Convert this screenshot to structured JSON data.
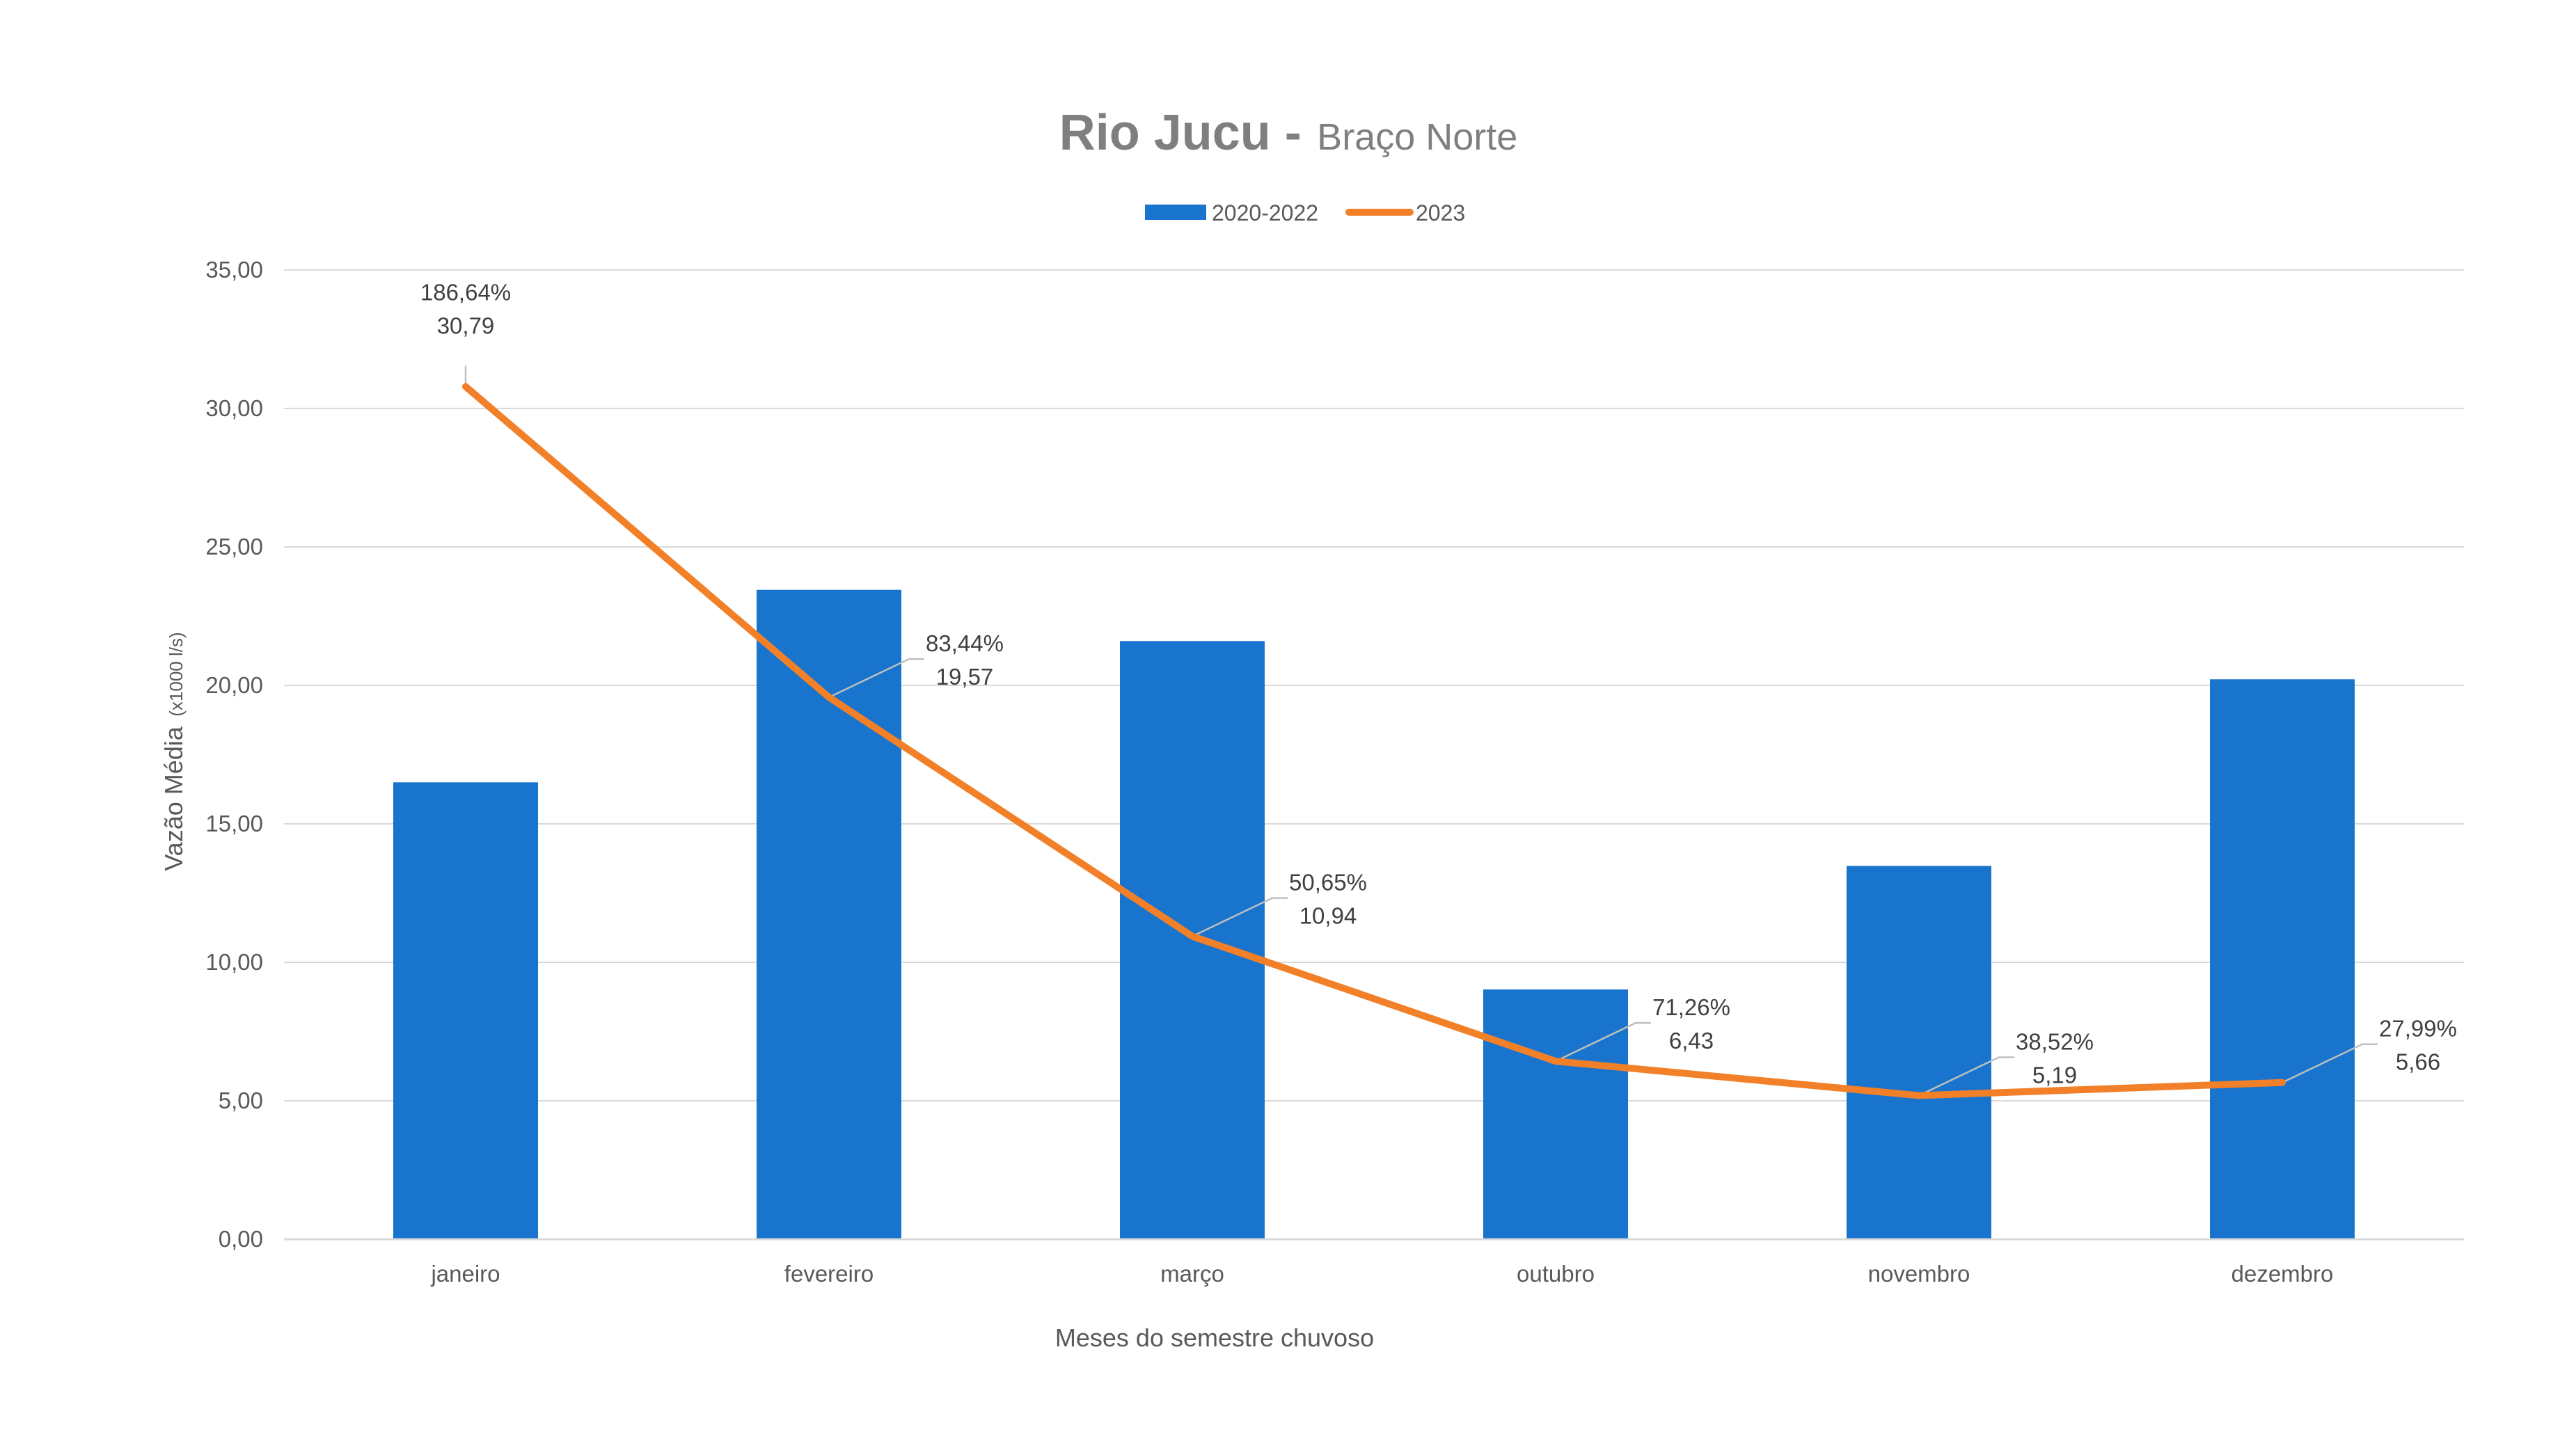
{
  "chart_data": {
    "type": "bar",
    "title": "Rio Jucu -",
    "subtitle": "Braço Norte",
    "categories": [
      "janeiro",
      "fevereiro",
      "março",
      "outubro",
      "novembro",
      "dezembro"
    ],
    "series": [
      {
        "name": "2020-2022",
        "type": "bar",
        "color": "#1874cd",
        "values": [
          16.5,
          23.45,
          21.6,
          9.02,
          13.48,
          20.22
        ]
      },
      {
        "name": "2023",
        "type": "line",
        "color": "#f28028",
        "values": [
          30.79,
          19.57,
          10.94,
          6.43,
          5.19,
          5.66
        ],
        "labels": [
          {
            "pct": "186,64%",
            "val": "30,79"
          },
          {
            "pct": "83,44%",
            "val": "19,57"
          },
          {
            "pct": "50,65%",
            "val": "10,94"
          },
          {
            "pct": "71,26%",
            "val": "6,43"
          },
          {
            "pct": "38,52%",
            "val": "5,19"
          },
          {
            "pct": "27,99%",
            "val": "5,66"
          }
        ]
      }
    ],
    "ylim": [
      0,
      35
    ],
    "yticks": [
      "0,00",
      "5,00",
      "10,00",
      "15,00",
      "20,00",
      "25,00",
      "30,00",
      "35,00"
    ],
    "ylabel": "Vazão Média",
    "ylabel_unit": "(x1000 l/s)",
    "xlabel": "Meses do semestre chuvoso",
    "legend_position": "top",
    "grid": true
  }
}
